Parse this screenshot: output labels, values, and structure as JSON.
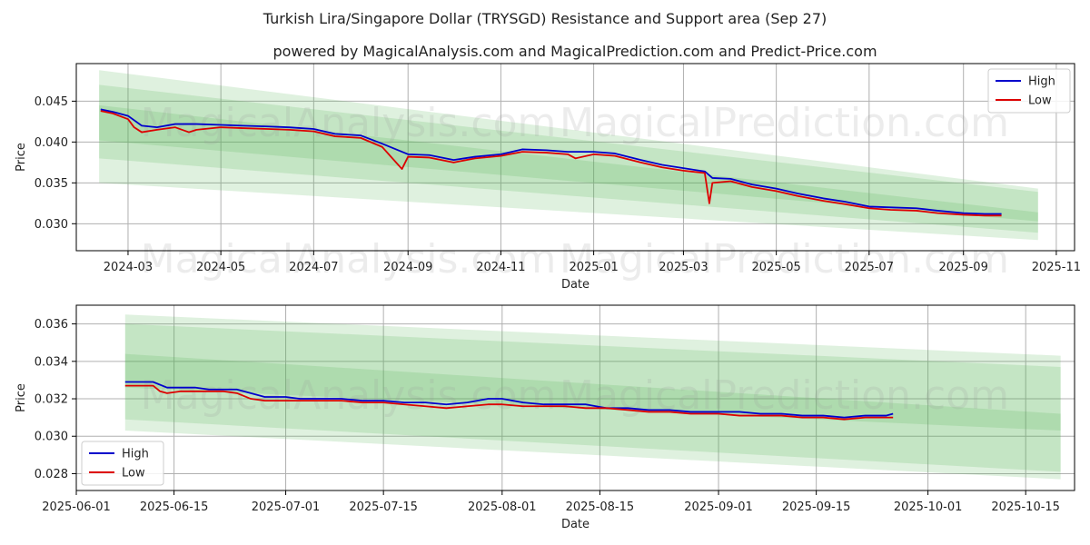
{
  "suptitle": "Turkish Lira/Singapore Dollar (TRYSGD) Resistance and Support area (Sep 27)",
  "colors": {
    "high": "#0000cc",
    "low": "#dd0000",
    "band": "#4caf50",
    "grid": "#b0b0b0"
  },
  "watermarks": [
    "MagicalAnalysis.com",
    "MagicalPrediction.com"
  ],
  "chart_data": [
    {
      "type": "line",
      "title": "powered by MagicalAnalysis.com and MagicalPrediction.com and Predict-Price.com",
      "xlabel": "Date",
      "ylabel": "Price",
      "xlim": [
        "2024-01-27",
        "2025-11-13"
      ],
      "ylim": [
        0.0267,
        0.0496
      ],
      "xticks": [
        "2024-03-01",
        "2024-05-01",
        "2024-07-01",
        "2024-09-01",
        "2024-11-01",
        "2025-01-01",
        "2025-03-01",
        "2025-05-01",
        "2025-07-01",
        "2025-09-01",
        "2025-11-01"
      ],
      "xtick_labels": [
        "2024-03",
        "2024-05",
        "2024-07",
        "2024-09",
        "2024-11",
        "2025-01",
        "2025-03",
        "2025-05",
        "2025-07",
        "2025-09",
        "2025-11"
      ],
      "yticks": [
        0.03,
        0.035,
        0.04,
        0.045
      ],
      "ytick_labels": [
        "0.030",
        "0.035",
        "0.040",
        "0.045"
      ],
      "legend": {
        "position": "top-right",
        "entries": [
          "High",
          "Low"
        ]
      },
      "bands": [
        {
          "start": "2024-02-11",
          "end": "2025-10-20",
          "upper": [
            0.0488,
            0.0343
          ],
          "lower": [
            0.035,
            0.028
          ]
        },
        {
          "start": "2024-02-11",
          "end": "2025-10-20",
          "upper": [
            0.047,
            0.0339
          ],
          "lower": [
            0.038,
            0.0289
          ]
        },
        {
          "start": "2024-02-11",
          "end": "2025-10-20",
          "upper": [
            0.0445,
            0.0314
          ],
          "lower": [
            0.0402,
            0.0303
          ]
        }
      ],
      "series": [
        {
          "name": "High",
          "x": [
            "2024-02-12",
            "2024-02-20",
            "2024-03-01",
            "2024-03-10",
            "2024-03-20",
            "2024-04-01",
            "2024-04-15",
            "2024-05-01",
            "2024-05-15",
            "2024-06-01",
            "2024-06-15",
            "2024-07-01",
            "2024-07-15",
            "2024-08-01",
            "2024-08-15",
            "2024-09-01",
            "2024-09-15",
            "2024-10-01",
            "2024-10-15",
            "2024-11-01",
            "2024-11-15",
            "2024-12-01",
            "2024-12-15",
            "2025-01-01",
            "2025-01-15",
            "2025-02-01",
            "2025-02-15",
            "2025-03-01",
            "2025-03-15",
            "2025-03-20",
            "2025-04-01",
            "2025-04-15",
            "2025-05-01",
            "2025-05-15",
            "2025-06-01",
            "2025-06-15",
            "2025-07-01",
            "2025-07-15",
            "2025-08-01",
            "2025-08-15",
            "2025-09-01",
            "2025-09-15",
            "2025-09-26"
          ],
          "values": [
            0.044,
            0.0437,
            0.0432,
            0.042,
            0.0418,
            0.0422,
            0.0422,
            0.0421,
            0.042,
            0.0419,
            0.0418,
            0.0416,
            0.041,
            0.0408,
            0.0398,
            0.0385,
            0.0384,
            0.0378,
            0.0382,
            0.0385,
            0.0391,
            0.039,
            0.0388,
            0.0388,
            0.0386,
            0.0378,
            0.0372,
            0.0368,
            0.0364,
            0.0356,
            0.0355,
            0.0348,
            0.0343,
            0.0337,
            0.0331,
            0.0327,
            0.0321,
            0.032,
            0.0319,
            0.0316,
            0.0313,
            0.0312,
            0.0312
          ]
        },
        {
          "name": "Low",
          "x": [
            "2024-02-12",
            "2024-02-20",
            "2024-03-01",
            "2024-03-05",
            "2024-03-10",
            "2024-03-20",
            "2024-04-01",
            "2024-04-10",
            "2024-04-15",
            "2024-05-01",
            "2024-05-15",
            "2024-06-01",
            "2024-06-15",
            "2024-07-01",
            "2024-07-15",
            "2024-08-01",
            "2024-08-15",
            "2024-08-28",
            "2024-09-01",
            "2024-09-15",
            "2024-10-01",
            "2024-10-15",
            "2024-11-01",
            "2024-11-15",
            "2024-12-01",
            "2024-12-15",
            "2024-12-20",
            "2025-01-01",
            "2025-01-15",
            "2025-02-01",
            "2025-02-15",
            "2025-03-01",
            "2025-03-15",
            "2025-03-18",
            "2025-03-20",
            "2025-04-01",
            "2025-04-15",
            "2025-05-01",
            "2025-05-15",
            "2025-06-01",
            "2025-06-15",
            "2025-07-01",
            "2025-07-15",
            "2025-08-01",
            "2025-08-15",
            "2025-09-01",
            "2025-09-15",
            "2025-09-26"
          ],
          "values": [
            0.0438,
            0.0435,
            0.0428,
            0.0418,
            0.0412,
            0.0415,
            0.0418,
            0.0412,
            0.0415,
            0.0418,
            0.0417,
            0.0416,
            0.0415,
            0.0413,
            0.0407,
            0.0405,
            0.0394,
            0.0367,
            0.0382,
            0.0381,
            0.0375,
            0.038,
            0.0383,
            0.0388,
            0.0387,
            0.0385,
            0.038,
            0.0385,
            0.0383,
            0.0375,
            0.0369,
            0.0365,
            0.0362,
            0.0325,
            0.035,
            0.0352,
            0.0345,
            0.034,
            0.0334,
            0.0328,
            0.0324,
            0.0319,
            0.0317,
            0.0316,
            0.0313,
            0.0311,
            0.031,
            0.031
          ]
        }
      ]
    },
    {
      "type": "line",
      "title": "",
      "xlabel": "Date",
      "ylabel": "Price",
      "xlim": [
        "2025-06-01",
        "2025-10-22"
      ],
      "ylim": [
        0.0271,
        0.037
      ],
      "xticks": [
        "2025-06-01",
        "2025-06-15",
        "2025-07-01",
        "2025-07-15",
        "2025-08-01",
        "2025-08-15",
        "2025-09-01",
        "2025-09-15",
        "2025-10-01",
        "2025-10-15"
      ],
      "xtick_labels": [
        "2025-06-01",
        "2025-06-15",
        "2025-07-01",
        "2025-07-15",
        "2025-08-01",
        "2025-08-15",
        "2025-09-01",
        "2025-09-15",
        "2025-10-01",
        "2025-10-15"
      ],
      "yticks": [
        0.028,
        0.03,
        0.032,
        0.034,
        0.036
      ],
      "ytick_labels": [
        "0.028",
        "0.030",
        "0.032",
        "0.034",
        "0.036"
      ],
      "legend": {
        "position": "bottom-left",
        "entries": [
          "High",
          "Low"
        ]
      },
      "bands": [
        {
          "start": "2025-06-08",
          "end": "2025-10-20",
          "upper": [
            0.0365,
            0.0343
          ],
          "lower": [
            0.0303,
            0.0277
          ]
        },
        {
          "start": "2025-06-08",
          "end": "2025-10-20",
          "upper": [
            0.036,
            0.0337
          ],
          "lower": [
            0.0309,
            0.0281
          ]
        },
        {
          "start": "2025-06-08",
          "end": "2025-10-20",
          "upper": [
            0.0344,
            0.0312
          ],
          "lower": [
            0.0326,
            0.0303
          ]
        }
      ],
      "series": [
        {
          "name": "High",
          "x": [
            "2025-06-08",
            "2025-06-10",
            "2025-06-12",
            "2025-06-14",
            "2025-06-16",
            "2025-06-18",
            "2025-06-20",
            "2025-06-22",
            "2025-06-24",
            "2025-06-26",
            "2025-06-28",
            "2025-07-01",
            "2025-07-03",
            "2025-07-06",
            "2025-07-09",
            "2025-07-12",
            "2025-07-15",
            "2025-07-18",
            "2025-07-21",
            "2025-07-24",
            "2025-07-27",
            "2025-07-30",
            "2025-08-01",
            "2025-08-04",
            "2025-08-07",
            "2025-08-10",
            "2025-08-13",
            "2025-08-16",
            "2025-08-19",
            "2025-08-22",
            "2025-08-25",
            "2025-08-28",
            "2025-09-01",
            "2025-09-04",
            "2025-09-07",
            "2025-09-10",
            "2025-09-13",
            "2025-09-16",
            "2025-09-19",
            "2025-09-22",
            "2025-09-25",
            "2025-09-26"
          ],
          "values": [
            0.0329,
            0.0329,
            0.0329,
            0.0326,
            0.0326,
            0.0326,
            0.0325,
            0.0325,
            0.0325,
            0.0323,
            0.0321,
            0.0321,
            0.032,
            0.032,
            0.032,
            0.0319,
            0.0319,
            0.0318,
            0.0318,
            0.0317,
            0.0318,
            0.032,
            0.032,
            0.0318,
            0.0317,
            0.0317,
            0.0317,
            0.0315,
            0.0315,
            0.0314,
            0.0314,
            0.0313,
            0.0313,
            0.0313,
            0.0312,
            0.0312,
            0.0311,
            0.0311,
            0.031,
            0.0311,
            0.0311,
            0.0312
          ]
        },
        {
          "name": "Low",
          "x": [
            "2025-06-08",
            "2025-06-10",
            "2025-06-12",
            "2025-06-13",
            "2025-06-14",
            "2025-06-16",
            "2025-06-18",
            "2025-06-20",
            "2025-06-22",
            "2025-06-24",
            "2025-06-26",
            "2025-06-28",
            "2025-07-01",
            "2025-07-03",
            "2025-07-06",
            "2025-07-09",
            "2025-07-12",
            "2025-07-15",
            "2025-07-18",
            "2025-07-21",
            "2025-07-24",
            "2025-07-27",
            "2025-07-30",
            "2025-08-01",
            "2025-08-04",
            "2025-08-07",
            "2025-08-10",
            "2025-08-13",
            "2025-08-16",
            "2025-08-19",
            "2025-08-22",
            "2025-08-25",
            "2025-08-28",
            "2025-09-01",
            "2025-09-04",
            "2025-09-07",
            "2025-09-10",
            "2025-09-13",
            "2025-09-16",
            "2025-09-19",
            "2025-09-22",
            "2025-09-25",
            "2025-09-26"
          ],
          "values": [
            0.0327,
            0.0327,
            0.0327,
            0.0324,
            0.0323,
            0.0324,
            0.0324,
            0.0324,
            0.0324,
            0.0323,
            0.032,
            0.0319,
            0.0319,
            0.0319,
            0.0319,
            0.0319,
            0.0318,
            0.0318,
            0.0317,
            0.0316,
            0.0315,
            0.0316,
            0.0317,
            0.0317,
            0.0316,
            0.0316,
            0.0316,
            0.0315,
            0.0315,
            0.0314,
            0.0313,
            0.0313,
            0.0312,
            0.0312,
            0.0311,
            0.0311,
            0.0311,
            0.031,
            0.031,
            0.0309,
            0.031,
            0.031,
            0.031
          ]
        }
      ]
    }
  ]
}
